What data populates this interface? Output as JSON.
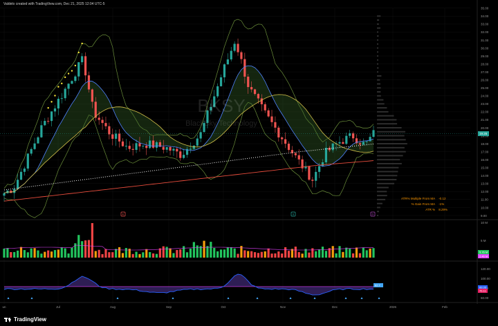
{
  "header": {
    "text": "Valdelo created with TradingView.com, Dec 21, 2025 12:04 UTC-5"
  },
  "watermark": {
    "symbol": "BKSY",
    "name": "BlackSky Technology"
  },
  "brand": {
    "name": "TradingView"
  },
  "colors": {
    "up": "#26a69a",
    "down": "#ef5350",
    "volume_up": "#22c55e",
    "volume_down": "#ef4444",
    "volume_orange": "#f59e0b",
    "ma_short": "#4f83ff",
    "ma_mid": "#d4c04a",
    "ma_long": "#e74c3c",
    "atr_line": "#2962ff",
    "atr_fill_below": "#9b27b0",
    "band": "#6b8f3a"
  },
  "stats": [
    {
      "label": "ATR% Multiple From MA",
      "value": "-0.12"
    },
    {
      "label": "% Gain From MA",
      "value": "-1%"
    },
    {
      "label": "ATR %",
      "value": "8.29%"
    }
  ],
  "event_markers": [
    {
      "date": "Aug",
      "label": "E"
    },
    {
      "date": "Nov",
      "label": "S"
    },
    {
      "date": "Dec",
      "label": "D"
    }
  ],
  "chart_data": {
    "type": "candlestick",
    "x_ticks": [
      "un",
      "Jul",
      "Aug",
      "Sep",
      "Oct",
      "Nov",
      "Dec",
      "2026",
      "Feb"
    ],
    "price_axis": {
      "ticks": [
        "35.00",
        "34.00",
        "33.00",
        "32.00",
        "31.00",
        "30.00",
        "29.00",
        "28.00",
        "27.00",
        "26.00",
        "25.00",
        "24.00",
        "23.00",
        "22.00",
        "21.00",
        "20.00",
        "19.00",
        "18.00",
        "17.00",
        "16.00",
        "15.00",
        "14.00",
        "13.00",
        "12.00",
        "11.00",
        "10.00",
        "9.00"
      ],
      "last_price": "19.26",
      "ylim": [
        9,
        35.5
      ]
    },
    "price_series": [
      {
        "date": "Jun",
        "close": 11.8
      },
      {
        "date": "Jun end",
        "close": 12.5
      },
      {
        "date": "Jul early",
        "close": 20.0
      },
      {
        "date": "Jul mid",
        "close": 24.5
      },
      {
        "date": "Jul late peak",
        "close": 28.6
      },
      {
        "date": "Jul end",
        "close": 22.0
      },
      {
        "date": "Aug early",
        "close": 19.2
      },
      {
        "date": "Aug mid",
        "close": 17.5
      },
      {
        "date": "Aug late",
        "close": 18.0
      },
      {
        "date": "Sep early",
        "close": 17.5
      },
      {
        "date": "Sep mid",
        "close": 16.6
      },
      {
        "date": "Sep late",
        "close": 19.2
      },
      {
        "date": "Oct early",
        "close": 27.0
      },
      {
        "date": "Oct peak",
        "close": 31.0
      },
      {
        "date": "Oct mid",
        "close": 25.0
      },
      {
        "date": "Oct late",
        "close": 21.5
      },
      {
        "date": "Nov early",
        "close": 18.5
      },
      {
        "date": "Nov mid",
        "close": 16.0
      },
      {
        "date": "Nov low",
        "close": 13.5
      },
      {
        "date": "Nov late",
        "close": 16.8
      },
      {
        "date": "Dec early",
        "close": 18.2
      },
      {
        "date": "Dec mid",
        "close": 19.0
      },
      {
        "date": "Dec late",
        "close": 17.8
      },
      {
        "date": "Dec 19",
        "close": 19.26
      }
    ],
    "volume_axis": {
      "ticks": [
        "10 M",
        "5 M"
      ],
      "badges": [
        "5.76 M",
        "2.46 M"
      ]
    },
    "atr_axis": {
      "ticks": [
        "120.00",
        "100.00",
        "80.00",
        "60.00"
      ],
      "badges": [
        "82.7",
        "83.33",
        "76.11"
      ]
    }
  }
}
